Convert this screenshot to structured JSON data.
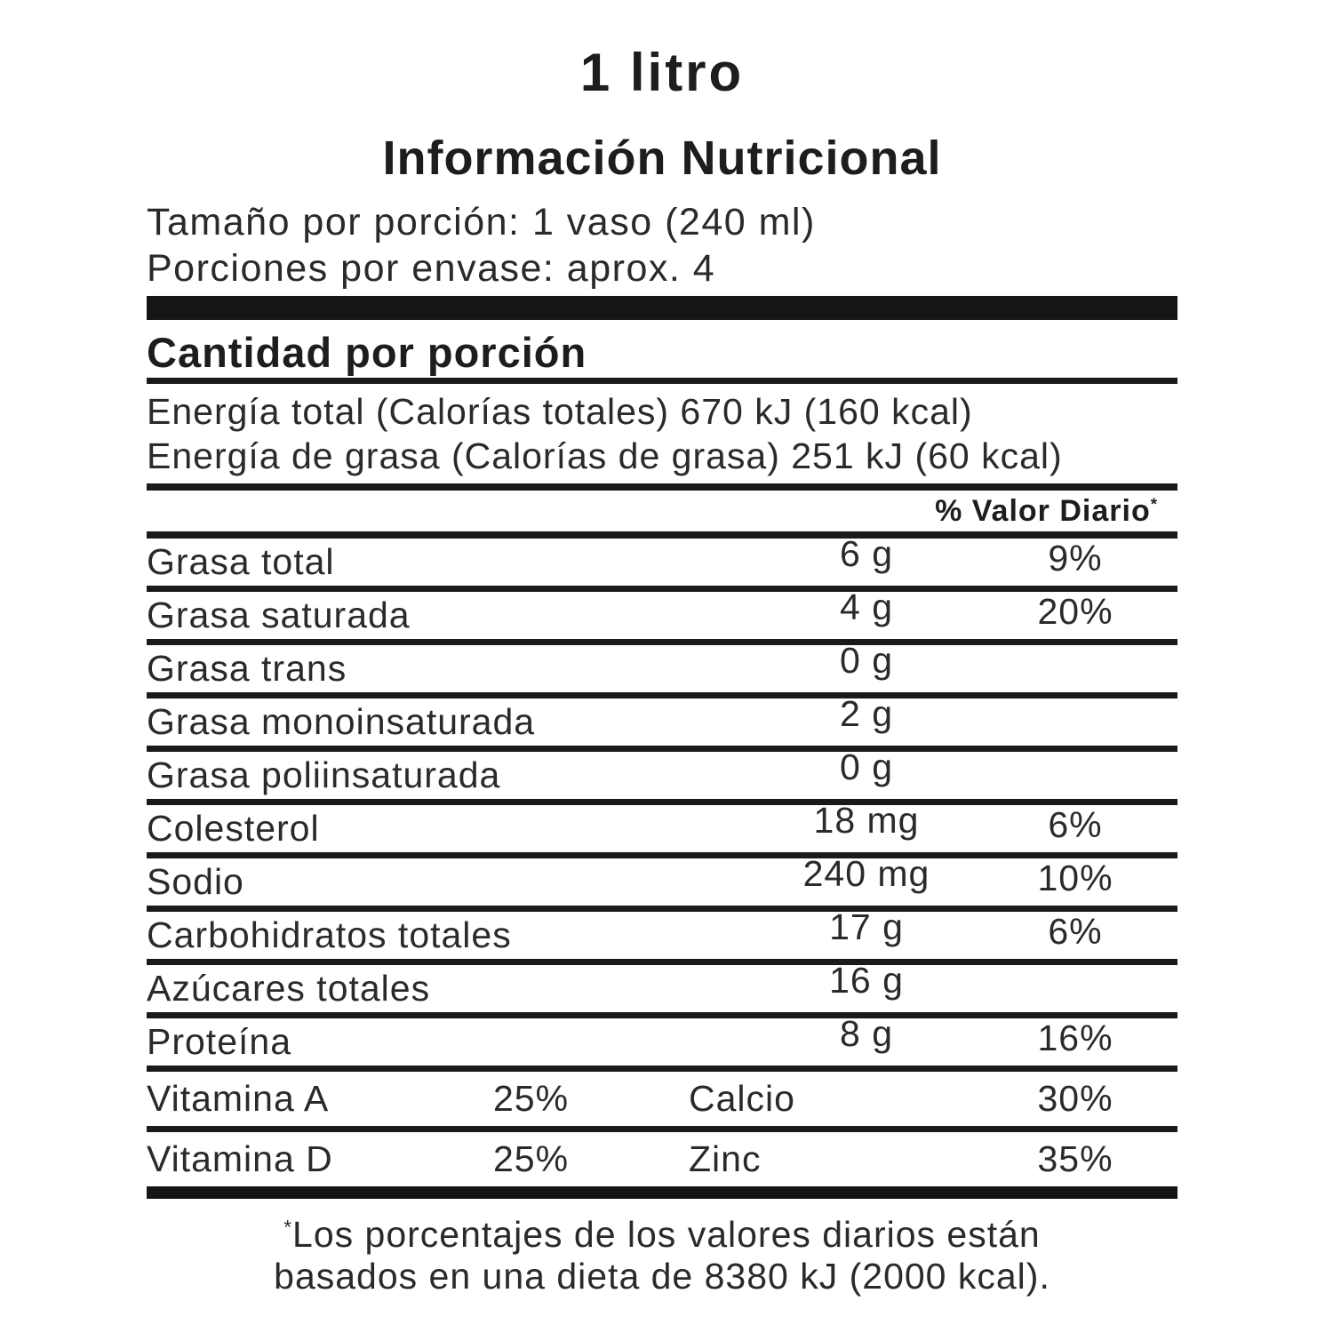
{
  "page": {
    "background_color": "#ffffff",
    "text_color": "#1d1d1d",
    "rule_color": "#1a1a1a"
  },
  "header": {
    "volume": "1 litro",
    "title": "Información Nutricional",
    "serving_size": "Tamaño por porción: 1 vaso (240 ml)",
    "servings_per_container": "Porciones por envase: aprox. 4"
  },
  "section": {
    "amount_per_serving": "Cantidad por porción",
    "energy_total": "Energía total (Calorías totales) 670 kJ (160 kcal)",
    "energy_fat": "Energía de grasa (Calorías de grasa) 251 kJ (60 kcal)",
    "daily_value_header": "% Valor Diario",
    "daily_value_asterisk": "*"
  },
  "nutrients": [
    {
      "label": "Grasa total",
      "amount": "6 g",
      "dv": "9%"
    },
    {
      "label": "Grasa saturada",
      "amount": "4 g",
      "dv": "20%"
    },
    {
      "label": "Grasa trans",
      "amount": "0 g",
      "dv": ""
    },
    {
      "label": "Grasa monoinsaturada",
      "amount": "2 g",
      "dv": ""
    },
    {
      "label": "Grasa poliinsaturada",
      "amount": "0 g",
      "dv": ""
    },
    {
      "label": "Colesterol",
      "amount": "18 mg",
      "dv": "6%"
    },
    {
      "label": "Sodio",
      "amount": "240 mg",
      "dv": "10%"
    },
    {
      "label": "Carbohidratos totales",
      "amount": "17 g",
      "dv": "6%"
    },
    {
      "label": "Azúcares totales",
      "amount": "16 g",
      "dv": ""
    },
    {
      "label": "Proteína",
      "amount": "8 g",
      "dv": "16%"
    }
  ],
  "micronutrients": [
    {
      "left_label": "Vitamina A",
      "left_value": "25%",
      "right_label": "Calcio",
      "right_value": "30%"
    },
    {
      "left_label": "Vitamina D",
      "left_value": "25%",
      "right_label": "Zinc",
      "right_value": "35%"
    }
  ],
  "footnote": {
    "asterisk": "*",
    "line1": "Los porcentajes de los valores diarios están",
    "line2": "basados en una dieta de 8380 kJ (2000 kcal)."
  }
}
